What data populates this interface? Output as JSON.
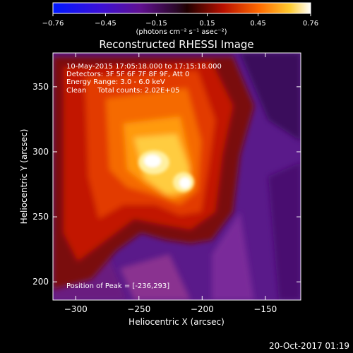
{
  "chart_data": {
    "type": "heatmap",
    "title": "Reconstructed RHESSI Image",
    "xlabel": "Heliocentric X (arcsec)",
    "ylabel": "Heliocentric Y (arcsec)",
    "xlim": [
      -318,
      -122
    ],
    "ylim": [
      186,
      376
    ],
    "x_ticks": [
      -300,
      -250,
      -200,
      -150
    ],
    "y_ticks": [
      200,
      250,
      300,
      350
    ],
    "colorbar": {
      "ticks": [
        "-0.76",
        "-0.45",
        "-0.15",
        "0.15",
        "0.45",
        "0.76"
      ],
      "range": [
        -0.76,
        0.76
      ],
      "unit_label": "(photons cm⁻² s⁻¹ asec⁻²)"
    },
    "annotations": [
      "10-May-2015 17:05:18.000 to 17:15:18.000",
      "Detectors: 3F 5F 6F 7F 8F 9F, Att 0",
      "Energy Range: 3.0 - 6.0 keV",
      "Clean     Total counts: 2.02E+05"
    ],
    "peak_label": "Position of Peak = [-236,293]",
    "peak_position": [
      -236,
      293
    ],
    "sources": [
      {
        "x": -238,
        "y": 294,
        "intensity": 0.76
      },
      {
        "x": -216,
        "y": 279,
        "intensity": 0.68
      }
    ]
  },
  "footer": {
    "timestamp": "20-Oct-2017 01:19"
  }
}
